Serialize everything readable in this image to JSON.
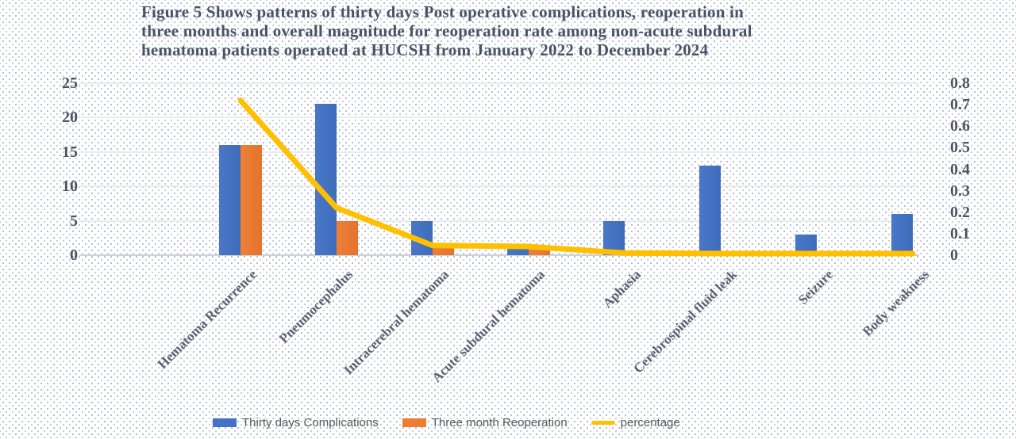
{
  "figure": {
    "title": "Figure 5 Shows patterns of thirty days Post operative complications, reoperation in three months and overall magnitude for reoperation rate among non-acute subdural hematoma patients operated at HUCSH from January 2022 to December 2024",
    "title_lines": [
      "Figure 5 Shows patterns of thirty days Post operative complications, reoperation in",
      "three months and overall magnitude for reoperation rate among non-acute subdural",
      "hematoma patients operated at HUCSH from January 2022 to December 2024"
    ]
  },
  "legend": {
    "items": [
      {
        "label": "Thirty days Complications",
        "color": "#4472C4",
        "type": "bar"
      },
      {
        "label": "Three month Reoperation",
        "color": "#ED7D31",
        "type": "bar"
      },
      {
        "label": "percentage",
        "color": "#FFC000",
        "type": "line"
      }
    ]
  },
  "chart_data": {
    "type": "bar",
    "subtype": "combo bar + line, dual axis",
    "title": "Figure 5 Shows patterns of thirty days Post operative complications, reoperation in three months and overall magnitude for reoperation rate among non-acute subdural hematoma patients operated at HUCSH from January 2022 to December 2024",
    "categories": [
      "Hematoma Recurrence",
      "Pneumocephalus",
      "Intracerebral hematoma",
      "Acute subdural hematoma",
      "Aphasia",
      "Cerebrospinal fluid leak",
      "Seizure",
      "Body weakness"
    ],
    "series": [
      {
        "name": "Thirty days Complications",
        "type": "bar",
        "axis": "left",
        "color": "#4472C4",
        "values": [
          16,
          22,
          5,
          1,
          5,
          13,
          3,
          6
        ]
      },
      {
        "name": "Three month Reoperation",
        "type": "bar",
        "axis": "left",
        "color": "#ED7D31",
        "values": [
          16,
          5,
          1,
          1,
          0,
          0,
          0,
          0
        ]
      },
      {
        "name": "percentage",
        "type": "line",
        "axis": "right",
        "color": "#FFC000",
        "values": [
          0.72,
          0.22,
          0.045,
          0.04,
          0.01,
          0,
          0,
          0
        ]
      }
    ],
    "left_axis": {
      "range": [
        0,
        25
      ],
      "ticks": [
        0,
        5,
        10,
        15,
        20,
        25
      ]
    },
    "right_axis": {
      "range": [
        0,
        0.8
      ],
      "ticks": [
        0,
        0.1,
        0.2,
        0.3,
        0.4,
        0.5,
        0.6,
        0.7,
        0.8
      ]
    },
    "grid": "horizontal",
    "legend_position": "bottom",
    "xlabel": "",
    "ylabel": ""
  }
}
